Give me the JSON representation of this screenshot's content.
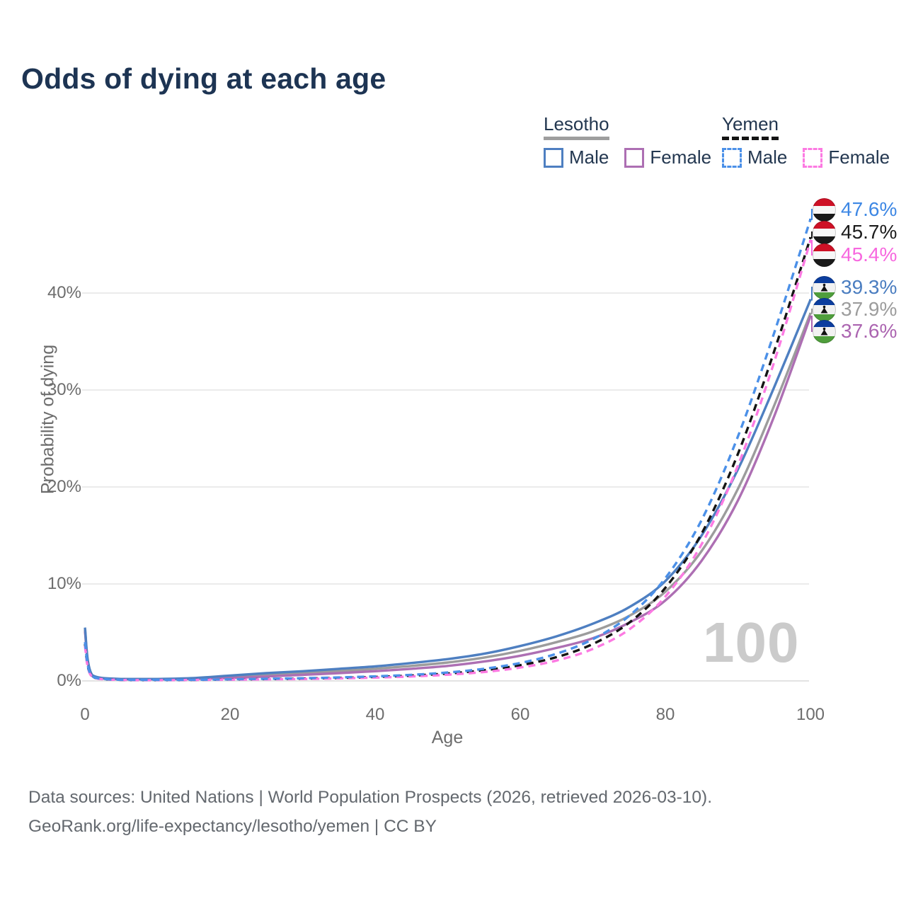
{
  "title": "Odds of dying at each age",
  "legend": {
    "groups": [
      {
        "name": "Lesotho",
        "underline_style": "solid",
        "underline_color": "#9e9e9e",
        "items": [
          {
            "label": "Male",
            "color": "#4e7fc1",
            "dash": false
          },
          {
            "label": "Female",
            "color": "#ad6fb3",
            "dash": false
          }
        ]
      },
      {
        "name": "Yemen",
        "underline_style": "dashed",
        "underline_color": "#141414",
        "items": [
          {
            "label": "Male",
            "color": "#4b90e8",
            "dash": true
          },
          {
            "label": "Female",
            "color": "#fc7ae2",
            "dash": true
          }
        ]
      }
    ]
  },
  "chart_data": {
    "type": "line",
    "title": "Odds of dying at each age",
    "xlabel": "Age",
    "ylabel": "Probability of dying",
    "xlim": [
      0,
      100
    ],
    "ylim_percent": [
      0,
      48
    ],
    "grid": "horizontal",
    "xticks": [
      {
        "label": "0",
        "value": 0
      },
      {
        "label": "20",
        "value": 20
      },
      {
        "label": "40",
        "value": 40
      },
      {
        "label": "60",
        "value": 60
      },
      {
        "label": "80",
        "value": 80
      },
      {
        "label": "100",
        "value": 100
      }
    ],
    "yticks": [
      {
        "label": "0%",
        "value": 0
      },
      {
        "label": "10%",
        "value": 10
      },
      {
        "label": "20%",
        "value": 20
      },
      {
        "label": "30%",
        "value": 30
      },
      {
        "label": "40%",
        "value": 40
      }
    ],
    "x_ages": [
      0,
      1,
      5,
      10,
      15,
      20,
      25,
      30,
      35,
      40,
      45,
      50,
      55,
      60,
      65,
      70,
      75,
      80,
      85,
      90,
      95,
      100
    ],
    "series": [
      {
        "id": "lesotho-all",
        "name": "Lesotho",
        "sex": "All",
        "color": "#9c9c9c",
        "dash": false,
        "values": [
          5.3,
          0.55,
          0.18,
          0.18,
          0.25,
          0.42,
          0.62,
          0.82,
          1.02,
          1.25,
          1.55,
          1.9,
          2.4,
          3.1,
          4.0,
          5.1,
          6.7,
          9.2,
          13.4,
          19.8,
          28.4,
          37.9
        ]
      },
      {
        "id": "lesotho-female",
        "name": "Lesotho Female",
        "sex": "Female",
        "color": "#ad6fb3",
        "dash": false,
        "values": [
          5.1,
          0.5,
          0.16,
          0.16,
          0.2,
          0.3,
          0.45,
          0.63,
          0.8,
          1.0,
          1.25,
          1.55,
          2.0,
          2.6,
          3.4,
          4.4,
          6.0,
          8.3,
          12.4,
          18.6,
          27.3,
          37.6
        ]
      },
      {
        "id": "lesotho-male",
        "name": "Lesotho Male",
        "sex": "Male",
        "color": "#4e7fc1",
        "dash": false,
        "values": [
          5.5,
          0.6,
          0.2,
          0.2,
          0.3,
          0.55,
          0.8,
          1.0,
          1.25,
          1.5,
          1.85,
          2.25,
          2.8,
          3.6,
          4.6,
          5.9,
          7.6,
          10.3,
          15.0,
          21.8,
          30.3,
          39.3
        ]
      },
      {
        "id": "yemen-all",
        "name": "Yemen",
        "sex": "All",
        "color": "#141414",
        "dash": true,
        "values": [
          3.8,
          0.42,
          0.11,
          0.09,
          0.11,
          0.15,
          0.19,
          0.24,
          0.31,
          0.41,
          0.55,
          0.76,
          1.1,
          1.62,
          2.45,
          3.8,
          6.0,
          9.6,
          15.2,
          23.4,
          34.0,
          45.7
        ]
      },
      {
        "id": "yemen-female",
        "name": "Yemen Female",
        "sex": "Female",
        "color": "#fc7ae2",
        "dash": true,
        "values": [
          3.6,
          0.4,
          0.1,
          0.08,
          0.1,
          0.13,
          0.16,
          0.2,
          0.26,
          0.34,
          0.46,
          0.64,
          0.92,
          1.38,
          2.1,
          3.3,
          5.3,
          8.7,
          14.1,
          22.2,
          32.9,
          45.4
        ]
      },
      {
        "id": "yemen-male",
        "name": "Yemen Male",
        "sex": "Male",
        "color": "#4b90e8",
        "dash": true,
        "values": [
          4.0,
          0.45,
          0.12,
          0.1,
          0.12,
          0.17,
          0.22,
          0.28,
          0.36,
          0.47,
          0.63,
          0.87,
          1.25,
          1.85,
          2.8,
          4.3,
          6.7,
          10.6,
          16.6,
          25.2,
          35.9,
          47.6
        ]
      }
    ],
    "end_labels": [
      {
        "text": "47.6%",
        "value": 47.6,
        "series": "yemen-male",
        "color": "#3d87e4",
        "flag": "yemen"
      },
      {
        "text": "45.7%",
        "value": 45.7,
        "series": "yemen-all",
        "color": "#1c1c1c",
        "flag": "yemen"
      },
      {
        "text": "45.4%",
        "value": 45.4,
        "series": "yemen-female",
        "color": "#f768df",
        "flag": "yemen"
      },
      {
        "text": "39.3%",
        "value": 39.3,
        "series": "lesotho-male",
        "color": "#4a7dc0",
        "flag": "lesotho"
      },
      {
        "text": "37.9%",
        "value": 37.9,
        "series": "lesotho-all",
        "color": "#9c9c9c",
        "flag": "lesotho"
      },
      {
        "text": "37.6%",
        "value": 37.6,
        "series": "lesotho-female",
        "color": "#ab64b0",
        "flag": "lesotho"
      }
    ],
    "watermark": "100"
  },
  "flags": {
    "yemen": {
      "stripes": [
        "#ce1126",
        "#f7f7f7",
        "#1a1a1a"
      ],
      "stops": [
        33.4,
        66.7
      ],
      "emblem": null
    },
    "lesotho": {
      "stripes": [
        "#0b3d9e",
        "#f2f2f2",
        "#4f9e3c"
      ],
      "stops": [
        31,
        69
      ],
      "emblem": "mokorotlo-hat"
    }
  },
  "footer": {
    "line1": "Data sources: United Nations | World Population Prospects (2026, retrieved 2026-03-10).",
    "line2": "GeoRank.org/life-expectancy/lesotho/yemen | CC BY"
  }
}
